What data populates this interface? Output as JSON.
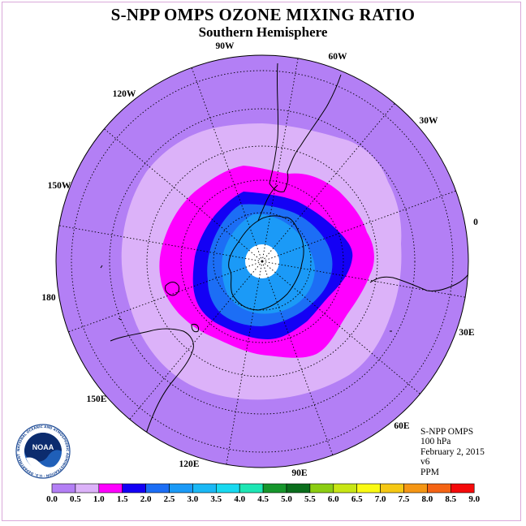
{
  "header": {
    "title": "S-NPP OMPS OZONE MIXING RATIO",
    "subtitle": "Southern Hemisphere"
  },
  "map": {
    "projection": "south-polar-stereographic",
    "longitude_labels": [
      "90W",
      "60W",
      "30W",
      "0",
      "30E",
      "60E",
      "90E",
      "120E",
      "150E",
      "180",
      "150W",
      "120W"
    ],
    "field_colors": [
      "#b37ff5",
      "#dcb2f9",
      "#ff00ff",
      "#1400f5",
      "#1c6ef5",
      "#1b9af7",
      "#ffffff"
    ]
  },
  "info": {
    "instrument": "S-NPP OMPS",
    "level": "100 hPa",
    "date": "February 2, 2015",
    "version": "v6",
    "units": "PPM"
  },
  "logo": {
    "name": "NOAA",
    "ring_text": "NATIONAL OCEANIC AND ATMOSPHERIC ADMINISTRATION · U.S. DEPARTMENT OF COMMERCE"
  },
  "colorbar": {
    "ticks": [
      "0.0",
      "0.5",
      "1.0",
      "1.5",
      "2.0",
      "2.5",
      "3.0",
      "3.5",
      "4.0",
      "4.5",
      "5.0",
      "5.5",
      "6.0",
      "6.5",
      "7.0",
      "7.5",
      "8.0",
      "8.5",
      "9.0"
    ],
    "colors": [
      "#b37ff5",
      "#dcb2f9",
      "#ff00ff",
      "#1400f5",
      "#1c6ef5",
      "#1b9af7",
      "#1ab8f5",
      "#18d9f0",
      "#1de6b4",
      "#16962c",
      "#0a6e1c",
      "#8ccd12",
      "#c8e614",
      "#fafa14",
      "#f5c814",
      "#f59614",
      "#f56414",
      "#f50a0a",
      "#8c5a3c"
    ]
  }
}
